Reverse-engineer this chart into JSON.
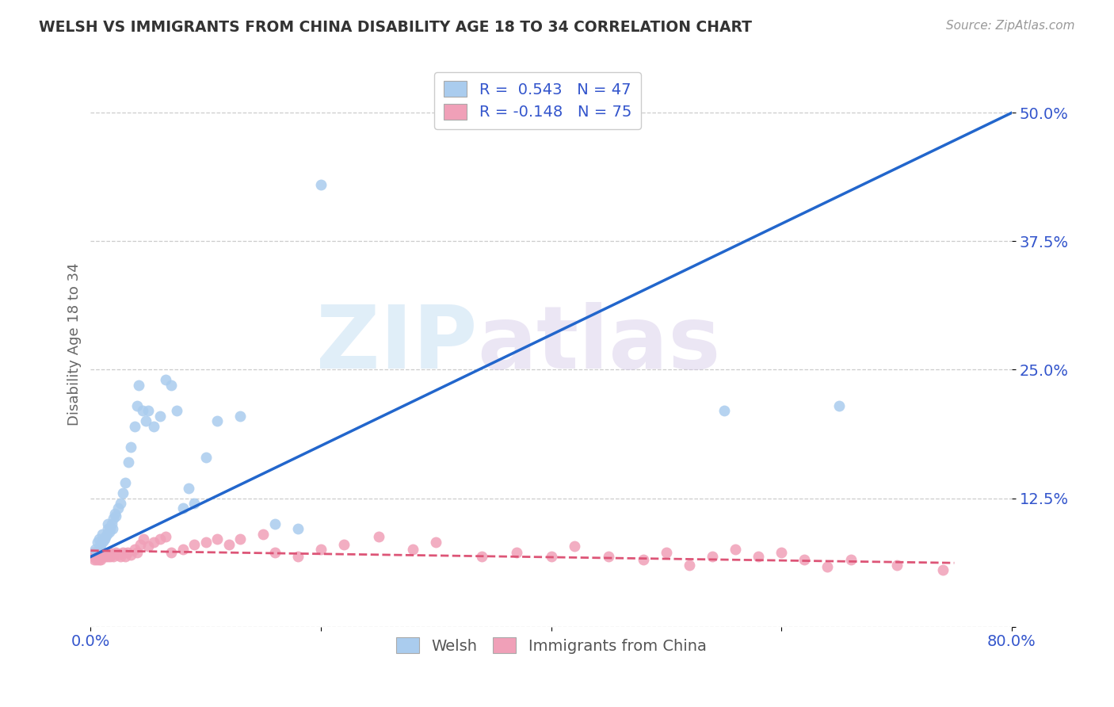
{
  "title": "WELSH VS IMMIGRANTS FROM CHINA DISABILITY AGE 18 TO 34 CORRELATION CHART",
  "source": "Source: ZipAtlas.com",
  "ylabel": "Disability Age 18 to 34",
  "watermark_zip": "ZIP",
  "watermark_atlas": "atlas",
  "xmin": 0.0,
  "xmax": 0.8,
  "ymin": 0.0,
  "ymax": 0.55,
  "yticks": [
    0.0,
    0.125,
    0.25,
    0.375,
    0.5
  ],
  "ytick_labels": [
    "",
    "12.5%",
    "25.0%",
    "37.5%",
    "50.0%"
  ],
  "xticks": [
    0.0,
    0.2,
    0.4,
    0.6,
    0.8
  ],
  "xtick_labels": [
    "0.0%",
    "",
    "",
    "",
    "80.0%"
  ],
  "legend_welsh_R": "0.543",
  "legend_welsh_N": "47",
  "legend_china_R": "-0.148",
  "legend_china_N": "75",
  "blue_scatter_color": "#aaccee",
  "pink_scatter_color": "#f0a0b8",
  "blue_line_color": "#2266cc",
  "pink_line_color": "#dd5577",
  "blue_legend_color": "#aaccee",
  "pink_legend_color": "#f0a0b8",
  "legend_text_color": "#3355cc",
  "tick_color": "#3355cc",
  "welsh_x": [
    0.004,
    0.006,
    0.007,
    0.008,
    0.009,
    0.01,
    0.011,
    0.012,
    0.013,
    0.014,
    0.015,
    0.015,
    0.016,
    0.017,
    0.018,
    0.019,
    0.02,
    0.021,
    0.022,
    0.024,
    0.026,
    0.028,
    0.03,
    0.033,
    0.035,
    0.038,
    0.04,
    0.042,
    0.045,
    0.048,
    0.05,
    0.055,
    0.06,
    0.065,
    0.07,
    0.075,
    0.08,
    0.085,
    0.09,
    0.1,
    0.11,
    0.13,
    0.16,
    0.18,
    0.2,
    0.55,
    0.65
  ],
  "welsh_y": [
    0.075,
    0.082,
    0.085,
    0.078,
    0.08,
    0.09,
    0.083,
    0.085,
    0.088,
    0.09,
    0.095,
    0.1,
    0.092,
    0.095,
    0.1,
    0.095,
    0.105,
    0.11,
    0.108,
    0.115,
    0.12,
    0.13,
    0.14,
    0.16,
    0.175,
    0.195,
    0.215,
    0.235,
    0.21,
    0.2,
    0.21,
    0.195,
    0.205,
    0.24,
    0.235,
    0.21,
    0.115,
    0.135,
    0.12,
    0.165,
    0.2,
    0.205,
    0.1,
    0.095,
    0.43,
    0.21,
    0.215
  ],
  "china_x": [
    0.001,
    0.002,
    0.002,
    0.003,
    0.003,
    0.004,
    0.004,
    0.005,
    0.005,
    0.006,
    0.006,
    0.007,
    0.007,
    0.008,
    0.008,
    0.009,
    0.009,
    0.01,
    0.01,
    0.011,
    0.012,
    0.013,
    0.014,
    0.015,
    0.016,
    0.017,
    0.018,
    0.02,
    0.022,
    0.024,
    0.026,
    0.028,
    0.03,
    0.032,
    0.035,
    0.038,
    0.04,
    0.043,
    0.046,
    0.05,
    0.055,
    0.06,
    0.065,
    0.07,
    0.08,
    0.09,
    0.1,
    0.11,
    0.12,
    0.13,
    0.15,
    0.16,
    0.18,
    0.2,
    0.22,
    0.25,
    0.28,
    0.3,
    0.34,
    0.37,
    0.4,
    0.42,
    0.45,
    0.48,
    0.5,
    0.52,
    0.54,
    0.56,
    0.58,
    0.6,
    0.62,
    0.64,
    0.66,
    0.7,
    0.74
  ],
  "china_y": [
    0.07,
    0.068,
    0.072,
    0.065,
    0.07,
    0.068,
    0.072,
    0.065,
    0.07,
    0.068,
    0.072,
    0.065,
    0.07,
    0.068,
    0.072,
    0.065,
    0.07,
    0.068,
    0.072,
    0.068,
    0.07,
    0.068,
    0.07,
    0.068,
    0.072,
    0.068,
    0.07,
    0.068,
    0.072,
    0.07,
    0.068,
    0.072,
    0.068,
    0.072,
    0.07,
    0.075,
    0.072,
    0.08,
    0.085,
    0.078,
    0.082,
    0.085,
    0.088,
    0.072,
    0.075,
    0.08,
    0.082,
    0.085,
    0.08,
    0.085,
    0.09,
    0.072,
    0.068,
    0.075,
    0.08,
    0.088,
    0.075,
    0.082,
    0.068,
    0.072,
    0.068,
    0.078,
    0.068,
    0.065,
    0.072,
    0.06,
    0.068,
    0.075,
    0.068,
    0.072,
    0.065,
    0.058,
    0.065,
    0.06,
    0.055
  ],
  "blue_line_x": [
    0.0,
    0.8
  ],
  "blue_line_y": [
    0.068,
    0.5
  ],
  "pink_line_x": [
    0.0,
    0.75
  ],
  "pink_line_y": [
    0.074,
    0.062
  ]
}
